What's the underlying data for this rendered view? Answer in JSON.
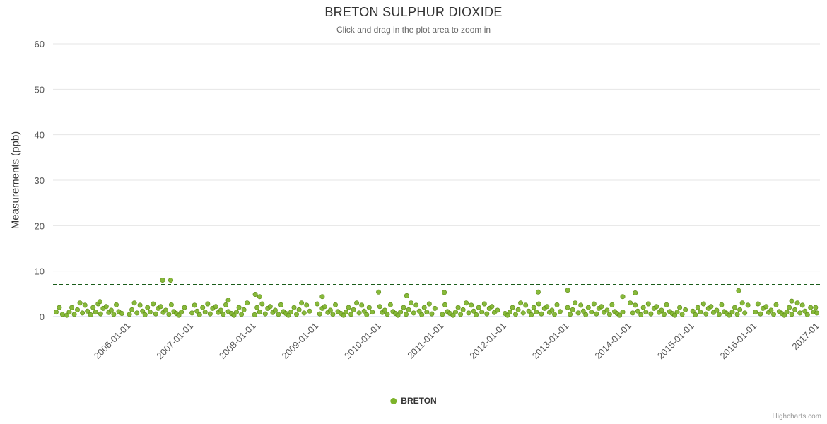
{
  "credits_label": "Highcharts.com",
  "chart_data": {
    "type": "scatter",
    "title": "BRETON SULPHUR DIOXIDE",
    "subtitle": "Click and drag in the plot area to zoom in",
    "xlabel": "",
    "ylabel": "Measurements (ppb)",
    "ylim": [
      0,
      60
    ],
    "y_ticks": [
      0,
      10,
      20,
      30,
      40,
      50,
      60
    ],
    "x_range": [
      2004.8,
      2017.05
    ],
    "x_tick_years": [
      2006,
      2007,
      2008,
      2009,
      2010,
      2011,
      2012,
      2013,
      2014,
      2015,
      2016,
      2017
    ],
    "x_tick_labels": [
      "2006-01-01",
      "2007-01-01",
      "2008-01-01",
      "2009-01-01",
      "2010-01-01",
      "2011-01-01",
      "2012-01-01",
      "2013-01-01",
      "2014-01-01",
      "2015-01-01",
      "2016-01-01",
      "2017-01"
    ],
    "grid": true,
    "legend_position": "bottom",
    "threshold_line": {
      "y": 7,
      "color": "#1a5c1a",
      "dash": "5,4"
    },
    "series": [
      {
        "name": "BRETON",
        "color": "#7db32a",
        "points": [
          [
            2004.85,
            1
          ],
          [
            2004.9,
            2
          ],
          [
            2004.95,
            0.5
          ],
          [
            2005.02,
            0.3
          ],
          [
            2005.06,
            1
          ],
          [
            2005.1,
            2
          ],
          [
            2005.14,
            0.5
          ],
          [
            2005.19,
            1.5
          ],
          [
            2005.23,
            3
          ],
          [
            2005.27,
            0.8
          ],
          [
            2005.31,
            2.5
          ],
          [
            2005.35,
            1.2
          ],
          [
            2005.4,
            0.4
          ],
          [
            2005.44,
            2
          ],
          [
            2005.48,
            1
          ],
          [
            2005.52,
            2.8
          ],
          [
            2005.56,
            0.6
          ],
          [
            2005.6,
            1.8
          ],
          [
            2005.65,
            2.2
          ],
          [
            2005.69,
            0.9
          ],
          [
            2005.73,
            1.4
          ],
          [
            2005.77,
            0.5
          ],
          [
            2005.81,
            2.6
          ],
          [
            2005.85,
            1.1
          ],
          [
            2005.9,
            0.7
          ],
          [
            2006.02,
            0.5
          ],
          [
            2006.06,
            1.5
          ],
          [
            2006.1,
            3
          ],
          [
            2006.14,
            0.8
          ],
          [
            2006.19,
            2.5
          ],
          [
            2006.23,
            1.2
          ],
          [
            2006.27,
            0.4
          ],
          [
            2006.31,
            2
          ],
          [
            2006.35,
            1
          ],
          [
            2006.4,
            2.8
          ],
          [
            2006.44,
            0.6
          ],
          [
            2006.48,
            1.8
          ],
          [
            2006.52,
            2.2
          ],
          [
            2006.56,
            0.9
          ],
          [
            2006.6,
            1.4
          ],
          [
            2006.65,
            0.5
          ],
          [
            2006.69,
            2.6
          ],
          [
            2006.73,
            1.1
          ],
          [
            2006.77,
            0.7
          ],
          [
            2006.81,
            0.3
          ],
          [
            2006.85,
            1
          ],
          [
            2006.9,
            2
          ],
          [
            2007.02,
            0.8
          ],
          [
            2007.06,
            2.5
          ],
          [
            2007.1,
            1.2
          ],
          [
            2007.14,
            0.4
          ],
          [
            2007.19,
            2
          ],
          [
            2007.23,
            1
          ],
          [
            2007.27,
            2.8
          ],
          [
            2007.31,
            0.6
          ],
          [
            2007.35,
            1.8
          ],
          [
            2007.4,
            2.2
          ],
          [
            2007.44,
            0.9
          ],
          [
            2007.48,
            1.4
          ],
          [
            2007.52,
            0.5
          ],
          [
            2007.56,
            2.6
          ],
          [
            2007.6,
            1.1
          ],
          [
            2007.65,
            0.7
          ],
          [
            2007.69,
            0.3
          ],
          [
            2007.73,
            1
          ],
          [
            2007.77,
            2
          ],
          [
            2007.81,
            0.5
          ],
          [
            2007.85,
            1.5
          ],
          [
            2007.9,
            3
          ],
          [
            2008.02,
            0.4
          ],
          [
            2008.06,
            2
          ],
          [
            2008.1,
            1
          ],
          [
            2008.14,
            2.8
          ],
          [
            2008.19,
            0.6
          ],
          [
            2008.23,
            1.8
          ],
          [
            2008.27,
            2.2
          ],
          [
            2008.31,
            0.9
          ],
          [
            2008.35,
            1.4
          ],
          [
            2008.4,
            0.5
          ],
          [
            2008.44,
            2.6
          ],
          [
            2008.48,
            1.1
          ],
          [
            2008.52,
            0.7
          ],
          [
            2008.56,
            0.3
          ],
          [
            2008.6,
            1
          ],
          [
            2008.65,
            2
          ],
          [
            2008.69,
            0.5
          ],
          [
            2008.73,
            1.5
          ],
          [
            2008.77,
            3
          ],
          [
            2008.81,
            0.8
          ],
          [
            2008.85,
            2.5
          ],
          [
            2008.9,
            1.2
          ],
          [
            2009.02,
            2.8
          ],
          [
            2009.06,
            0.6
          ],
          [
            2009.1,
            1.8
          ],
          [
            2009.14,
            2.2
          ],
          [
            2009.19,
            0.9
          ],
          [
            2009.23,
            1.4
          ],
          [
            2009.27,
            0.5
          ],
          [
            2009.31,
            2.6
          ],
          [
            2009.35,
            1.1
          ],
          [
            2009.4,
            0.7
          ],
          [
            2009.44,
            0.3
          ],
          [
            2009.48,
            1
          ],
          [
            2009.52,
            2
          ],
          [
            2009.56,
            0.5
          ],
          [
            2009.6,
            1.5
          ],
          [
            2009.65,
            3
          ],
          [
            2009.69,
            0.8
          ],
          [
            2009.73,
            2.5
          ],
          [
            2009.77,
            1.2
          ],
          [
            2009.81,
            0.4
          ],
          [
            2009.85,
            2
          ],
          [
            2009.9,
            1
          ],
          [
            2010.02,
            2.2
          ],
          [
            2010.06,
            0.9
          ],
          [
            2010.1,
            1.4
          ],
          [
            2010.14,
            0.5
          ],
          [
            2010.19,
            2.6
          ],
          [
            2010.23,
            1.1
          ],
          [
            2010.27,
            0.7
          ],
          [
            2010.31,
            0.3
          ],
          [
            2010.35,
            1
          ],
          [
            2010.4,
            2
          ],
          [
            2010.44,
            0.5
          ],
          [
            2010.48,
            1.5
          ],
          [
            2010.52,
            3
          ],
          [
            2010.56,
            0.8
          ],
          [
            2010.6,
            2.5
          ],
          [
            2010.65,
            1.2
          ],
          [
            2010.69,
            0.4
          ],
          [
            2010.73,
            2
          ],
          [
            2010.77,
            1
          ],
          [
            2010.81,
            2.8
          ],
          [
            2010.85,
            0.6
          ],
          [
            2010.9,
            1.8
          ],
          [
            2011.02,
            0.5
          ],
          [
            2011.06,
            2.6
          ],
          [
            2011.1,
            1.1
          ],
          [
            2011.14,
            0.7
          ],
          [
            2011.19,
            0.3
          ],
          [
            2011.23,
            1
          ],
          [
            2011.27,
            2
          ],
          [
            2011.31,
            0.5
          ],
          [
            2011.35,
            1.5
          ],
          [
            2011.4,
            3
          ],
          [
            2011.44,
            0.8
          ],
          [
            2011.48,
            2.5
          ],
          [
            2011.52,
            1.2
          ],
          [
            2011.56,
            0.4
          ],
          [
            2011.6,
            2
          ],
          [
            2011.65,
            1
          ],
          [
            2011.69,
            2.8
          ],
          [
            2011.73,
            0.6
          ],
          [
            2011.77,
            1.8
          ],
          [
            2011.81,
            2.2
          ],
          [
            2011.85,
            0.9
          ],
          [
            2011.9,
            1.4
          ],
          [
            2012.02,
            0.7
          ],
          [
            2012.06,
            0.3
          ],
          [
            2012.1,
            1
          ],
          [
            2012.14,
            2
          ],
          [
            2012.19,
            0.5
          ],
          [
            2012.23,
            1.5
          ],
          [
            2012.27,
            3
          ],
          [
            2012.31,
            0.8
          ],
          [
            2012.35,
            2.5
          ],
          [
            2012.4,
            1.2
          ],
          [
            2012.44,
            0.4
          ],
          [
            2012.48,
            2
          ],
          [
            2012.52,
            1
          ],
          [
            2012.56,
            2.8
          ],
          [
            2012.6,
            0.6
          ],
          [
            2012.65,
            1.8
          ],
          [
            2012.69,
            2.2
          ],
          [
            2012.73,
            0.9
          ],
          [
            2012.77,
            1.4
          ],
          [
            2012.81,
            0.5
          ],
          [
            2012.85,
            2.6
          ],
          [
            2012.9,
            1.1
          ],
          [
            2013.02,
            2
          ],
          [
            2013.06,
            0.5
          ],
          [
            2013.1,
            1.5
          ],
          [
            2013.14,
            3
          ],
          [
            2013.19,
            0.8
          ],
          [
            2013.23,
            2.5
          ],
          [
            2013.27,
            1.2
          ],
          [
            2013.31,
            0.4
          ],
          [
            2013.35,
            2
          ],
          [
            2013.4,
            1
          ],
          [
            2013.44,
            2.8
          ],
          [
            2013.48,
            0.6
          ],
          [
            2013.52,
            1.8
          ],
          [
            2013.56,
            2.2
          ],
          [
            2013.6,
            0.9
          ],
          [
            2013.65,
            1.4
          ],
          [
            2013.69,
            0.5
          ],
          [
            2013.73,
            2.6
          ],
          [
            2013.77,
            1.1
          ],
          [
            2013.81,
            0.7
          ],
          [
            2013.85,
            0.3
          ],
          [
            2013.9,
            1
          ],
          [
            2014.02,
            3
          ],
          [
            2014.06,
            0.8
          ],
          [
            2014.1,
            2.5
          ],
          [
            2014.14,
            1.2
          ],
          [
            2014.19,
            0.4
          ],
          [
            2014.23,
            2
          ],
          [
            2014.27,
            1
          ],
          [
            2014.31,
            2.8
          ],
          [
            2014.35,
            0.6
          ],
          [
            2014.4,
            1.8
          ],
          [
            2014.44,
            2.2
          ],
          [
            2014.48,
            0.9
          ],
          [
            2014.52,
            1.4
          ],
          [
            2014.56,
            0.5
          ],
          [
            2014.6,
            2.6
          ],
          [
            2014.65,
            1.1
          ],
          [
            2014.69,
            0.7
          ],
          [
            2014.73,
            0.3
          ],
          [
            2014.77,
            1
          ],
          [
            2014.81,
            2
          ],
          [
            2014.85,
            0.5
          ],
          [
            2014.9,
            1.5
          ],
          [
            2015.02,
            1.2
          ],
          [
            2015.06,
            0.4
          ],
          [
            2015.1,
            2
          ],
          [
            2015.14,
            1
          ],
          [
            2015.19,
            2.8
          ],
          [
            2015.23,
            0.6
          ],
          [
            2015.27,
            1.8
          ],
          [
            2015.31,
            2.2
          ],
          [
            2015.35,
            0.9
          ],
          [
            2015.4,
            1.4
          ],
          [
            2015.44,
            0.5
          ],
          [
            2015.48,
            2.6
          ],
          [
            2015.52,
            1.1
          ],
          [
            2015.56,
            0.7
          ],
          [
            2015.6,
            0.3
          ],
          [
            2015.65,
            1
          ],
          [
            2015.69,
            2
          ],
          [
            2015.73,
            0.5
          ],
          [
            2015.77,
            1.5
          ],
          [
            2015.81,
            3
          ],
          [
            2015.85,
            0.8
          ],
          [
            2015.9,
            2.5
          ],
          [
            2016.02,
            1
          ],
          [
            2016.06,
            2.8
          ],
          [
            2016.1,
            0.6
          ],
          [
            2016.14,
            1.8
          ],
          [
            2016.19,
            2.2
          ],
          [
            2016.23,
            0.9
          ],
          [
            2016.27,
            1.4
          ],
          [
            2016.31,
            0.5
          ],
          [
            2016.35,
            2.6
          ],
          [
            2016.4,
            1.1
          ],
          [
            2016.44,
            0.7
          ],
          [
            2016.48,
            0.3
          ],
          [
            2016.52,
            1
          ],
          [
            2016.56,
            2
          ],
          [
            2016.6,
            0.5
          ],
          [
            2016.65,
            1.5
          ],
          [
            2016.69,
            3
          ],
          [
            2016.73,
            0.8
          ],
          [
            2016.77,
            2.5
          ],
          [
            2016.81,
            1.2
          ],
          [
            2016.85,
            0.4
          ],
          [
            2016.9,
            2
          ],
          [
            2016.95,
            1
          ],
          [
            2016.98,
            2
          ],
          [
            2017.0,
            0.8
          ],
          [
            2006.55,
            8
          ],
          [
            2006.68,
            8
          ],
          [
            2005.55,
            3.3
          ],
          [
            2007.6,
            3.6
          ],
          [
            2008.03,
            4.9
          ],
          [
            2008.1,
            4.4
          ],
          [
            2009.1,
            4.4
          ],
          [
            2010.0,
            5.4
          ],
          [
            2010.45,
            4.6
          ],
          [
            2011.05,
            5.3
          ],
          [
            2012.55,
            5.4
          ],
          [
            2013.02,
            5.8
          ],
          [
            2013.9,
            4.4
          ],
          [
            2014.1,
            5.2
          ],
          [
            2015.75,
            5.7
          ],
          [
            2016.6,
            3.4
          ]
        ]
      }
    ]
  }
}
